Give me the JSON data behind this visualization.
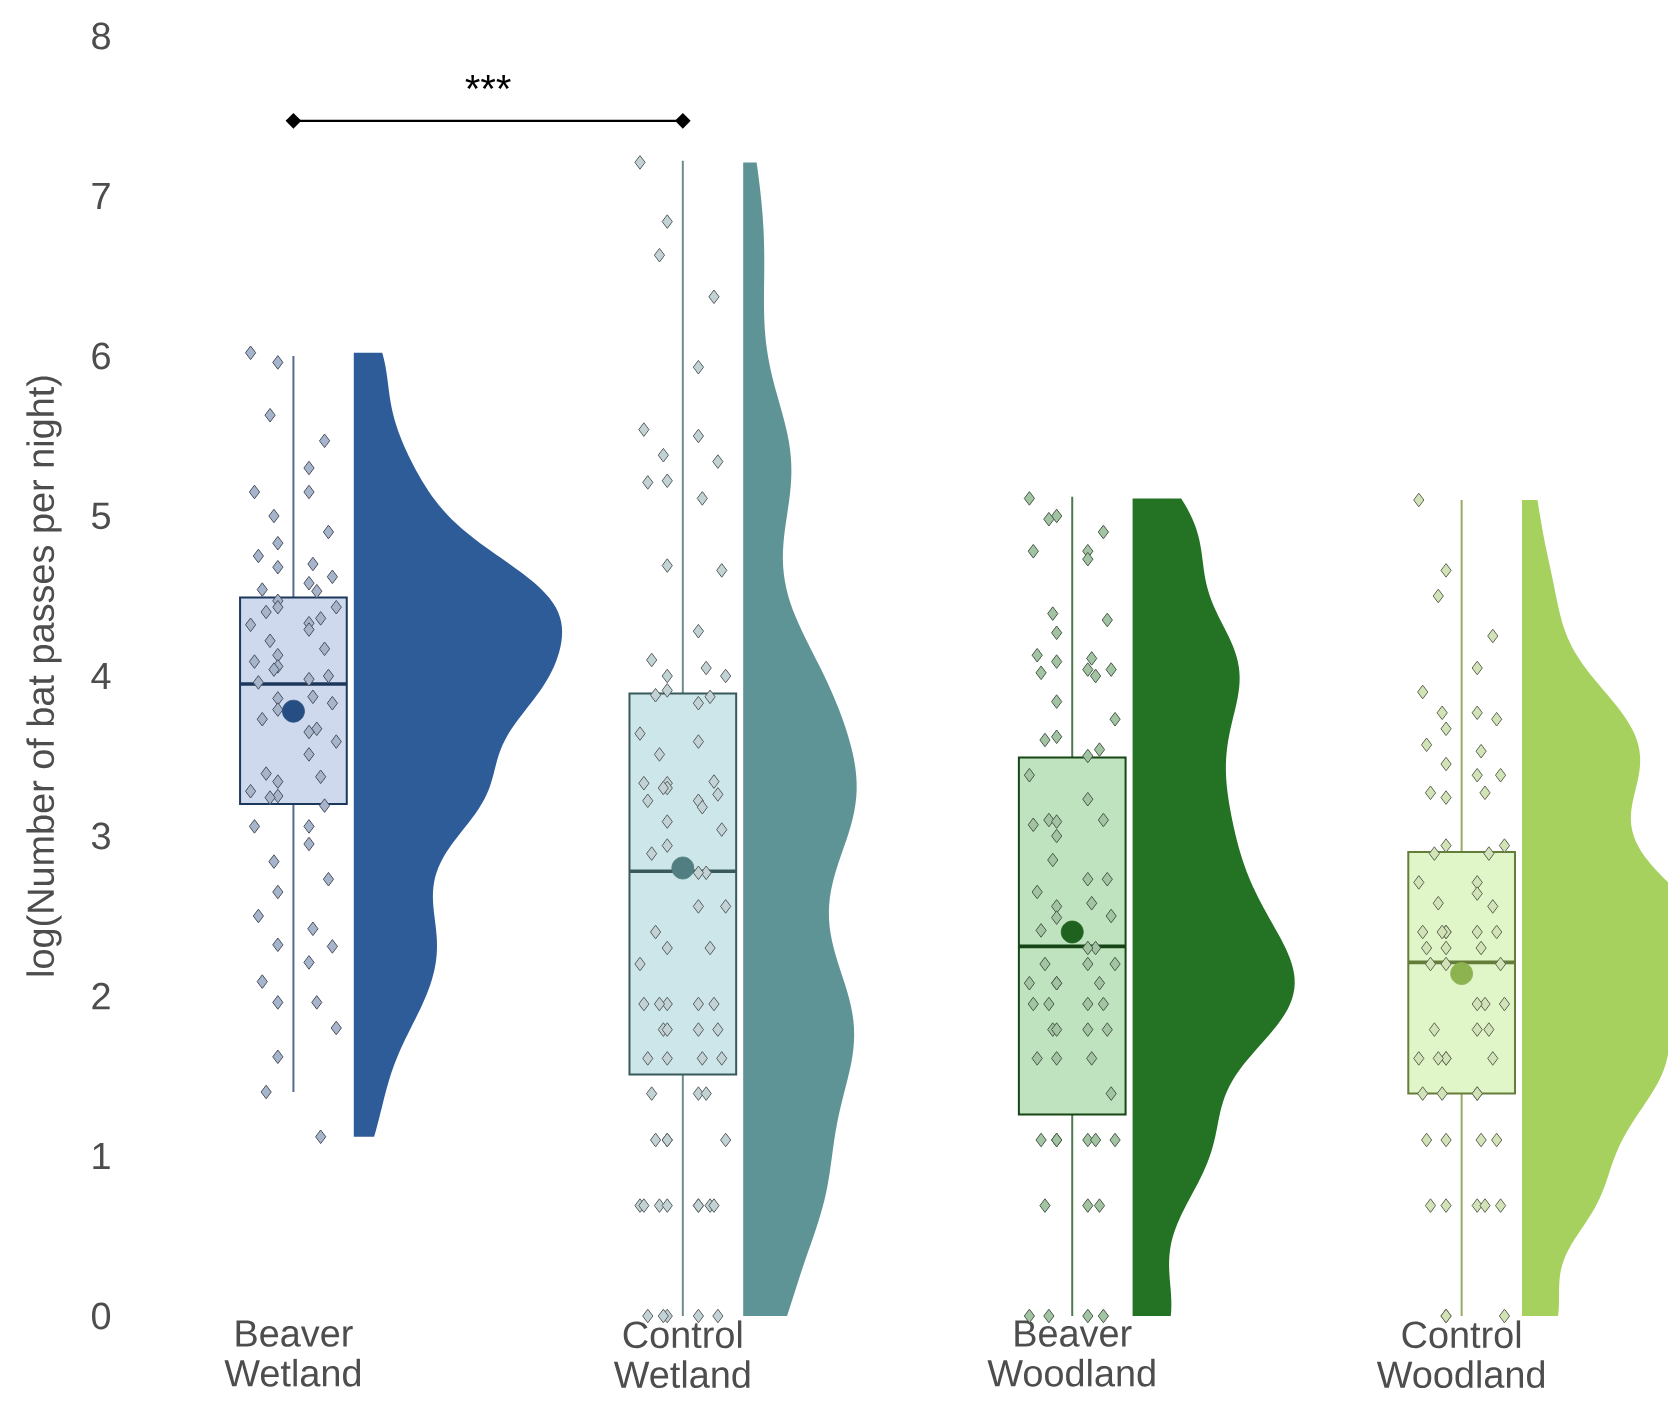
{
  "chart_data": {
    "type": "box",
    "ylabel": "log(Number of bat passes per night)",
    "categories": [
      "Beaver Wetland",
      "Control Wetland",
      "Beaver Woodland",
      "Control Woodland"
    ],
    "ylim": [
      0,
      8
    ],
    "yticks": [
      0,
      1,
      2,
      3,
      4,
      5,
      6,
      7,
      8
    ],
    "colors": [
      "#cfd9ee",
      "#cde6ea",
      "#bfe3bf",
      "#e0f5c8"
    ],
    "boxes": [
      {
        "low": 1.4,
        "q1": 3.2,
        "median": 3.95,
        "q3": 4.49,
        "high": 6.0,
        "mean": 3.78
      },
      {
        "low": 0,
        "q1": 1.51,
        "median": 2.78,
        "q3": 3.89,
        "high": 7.22,
        "mean": 2.8
      },
      {
        "low": 0,
        "q1": 1.26,
        "median": 2.31,
        "q3": 3.49,
        "high": 5.12,
        "mean": 2.4
      },
      {
        "low": 0,
        "q1": 1.39,
        "median": 2.21,
        "q3": 2.9,
        "high": 5.1,
        "mean": 2.14
      }
    ],
    "annotations": [
      "***"
    ],
    "series": [
      {
        "type": "scatter",
        "marker": "diamond",
        "color": "#a6b4cc",
        "x": [
          "Beaver Wetland",
          "Beaver Wetland",
          "Beaver Wetland",
          "Beaver Wetland",
          "Beaver Wetland",
          "Beaver Wetland",
          "Beaver Wetland",
          "Beaver Wetland",
          "Beaver Wetland",
          "Beaver Wetland",
          "Beaver Wetland",
          "Beaver Wetland",
          "Beaver Wetland",
          "Beaver Wetland",
          "Beaver Wetland",
          "Beaver Wetland",
          "Beaver Wetland",
          "Beaver Wetland",
          "Beaver Wetland",
          "Beaver Wetland",
          "Beaver Wetland",
          "Beaver Wetland",
          "Beaver Wetland",
          "Beaver Wetland",
          "Beaver Wetland",
          "Beaver Wetland",
          "Beaver Wetland",
          "Beaver Wetland",
          "Beaver Wetland",
          "Beaver Wetland",
          "Beaver Wetland",
          "Beaver Wetland",
          "Beaver Wetland",
          "Beaver Wetland",
          "Beaver Wetland",
          "Beaver Wetland",
          "Beaver Wetland",
          "Beaver Wetland",
          "Beaver Wetland",
          "Beaver Wetland",
          "Beaver Wetland",
          "Beaver Wetland",
          "Beaver Wetland",
          "Beaver Wetland",
          "Beaver Wetland",
          "Beaver Wetland",
          "Beaver Wetland",
          "Beaver Wetland",
          "Beaver Wetland",
          "Beaver Wetland",
          "Beaver Wetland",
          "Beaver Wetland",
          "Beaver Wetland",
          "Beaver Wetland",
          "Beaver Wetland",
          "Beaver Wetland",
          "Beaver Wetland",
          "Beaver Wetland",
          "Beaver Wetland",
          "Beaver Wetland",
          "Beaver Wetland",
          "Beaver Wetland",
          "Beaver Wetland",
          "Beaver Wetland",
          "Beaver Wetland",
          "Beaver Wetland",
          "Beaver Wetland",
          "Beaver Wetland"
        ],
        "values": [
          6.02,
          5.96,
          5.63,
          5.47,
          5.3,
          5.15,
          5.15,
          5.0,
          4.9,
          4.83,
          4.75,
          4.7,
          4.68,
          4.62,
          4.58,
          4.54,
          4.53,
          4.47,
          4.43,
          4.43,
          4.4,
          4.36,
          4.33,
          4.32,
          4.29,
          4.22,
          4.17,
          4.13,
          4.09,
          4.06,
          4.04,
          4.0,
          3.98,
          3.96,
          3.87,
          3.86,
          3.83,
          3.79,
          3.73,
          3.67,
          3.65,
          3.59,
          3.51,
          3.39,
          3.37,
          3.34,
          3.28,
          3.25,
          3.24,
          3.19,
          3.06,
          3.06,
          2.95,
          2.84,
          2.73,
          2.65,
          2.5,
          2.42,
          2.32,
          2.31,
          2.21,
          2.09,
          1.96,
          1.96,
          1.8,
          1.62,
          1.4,
          1.12
        ]
      },
      {
        "type": "scatter",
        "marker": "diamond",
        "color": "#c3d3d5",
        "x": [
          "Control Wetland",
          "Control Wetland",
          "Control Wetland",
          "Control Wetland",
          "Control Wetland",
          "Control Wetland",
          "Control Wetland",
          "Control Wetland",
          "Control Wetland",
          "Control Wetland",
          "Control Wetland",
          "Control Wetland",
          "Control Wetland",
          "Control Wetland",
          "Control Wetland",
          "Control Wetland",
          "Control Wetland",
          "Control Wetland",
          "Control Wetland",
          "Control Wetland",
          "Control Wetland",
          "Control Wetland",
          "Control Wetland",
          "Control Wetland",
          "Control Wetland",
          "Control Wetland",
          "Control Wetland",
          "Control Wetland",
          "Control Wetland",
          "Control Wetland",
          "Control Wetland",
          "Control Wetland",
          "Control Wetland",
          "Control Wetland",
          "Control Wetland",
          "Control Wetland",
          "Control Wetland",
          "Control Wetland",
          "Control Wetland",
          "Control Wetland",
          "Control Wetland",
          "Control Wetland",
          "Control Wetland",
          "Control Wetland",
          "Control Wetland",
          "Control Wetland",
          "Control Wetland",
          "Control Wetland",
          "Control Wetland",
          "Control Wetland",
          "Control Wetland",
          "Control Wetland",
          "Control Wetland",
          "Control Wetland",
          "Control Wetland",
          "Control Wetland",
          "Control Wetland",
          "Control Wetland",
          "Control Wetland",
          "Control Wetland",
          "Control Wetland",
          "Control Wetland",
          "Control Wetland",
          "Control Wetland",
          "Control Wetland",
          "Control Wetland",
          "Control Wetland",
          "Control Wetland",
          "Control Wetland",
          "Control Wetland",
          "Control Wetland",
          "Control Wetland",
          "Control Wetland",
          "Control Wetland",
          "Control Wetland",
          "Control Wetland",
          "Control Wetland",
          "Control Wetland",
          "Control Wetland",
          "Control Wetland"
        ],
        "values": [
          7.21,
          6.84,
          6.63,
          6.37,
          5.93,
          5.54,
          5.5,
          5.38,
          5.34,
          5.22,
          5.21,
          5.11,
          4.69,
          4.66,
          4.28,
          4.1,
          4.05,
          4.0,
          4.0,
          3.91,
          3.88,
          3.87,
          3.83,
          3.64,
          3.59,
          3.51,
          3.34,
          3.33,
          3.33,
          3.3,
          3.3,
          3.26,
          3.22,
          3.22,
          3.18,
          3.09,
          3.04,
          2.94,
          2.89,
          2.77,
          2.77,
          2.56,
          2.56,
          2.4,
          2.3,
          2.3,
          2.2,
          1.95,
          1.95,
          1.95,
          1.95,
          1.95,
          1.79,
          1.79,
          1.79,
          1.79,
          1.61,
          1.61,
          1.61,
          1.61,
          1.39,
          1.39,
          1.39,
          1.1,
          1.1,
          1.1,
          1.1,
          0.69,
          0.69,
          0.69,
          0.69,
          0.69,
          0.69,
          0.69,
          0.69,
          0,
          0,
          0,
          0,
          0
        ]
      },
      {
        "type": "scatter",
        "marker": "diamond",
        "color": "#a3c4a3",
        "x": [
          "Beaver Woodland",
          "Beaver Woodland",
          "Beaver Woodland",
          "Beaver Woodland",
          "Beaver Woodland",
          "Beaver Woodland",
          "Beaver Woodland",
          "Beaver Woodland",
          "Beaver Woodland",
          "Beaver Woodland",
          "Beaver Woodland",
          "Beaver Woodland",
          "Beaver Woodland",
          "Beaver Woodland",
          "Beaver Woodland",
          "Beaver Woodland",
          "Beaver Woodland",
          "Beaver Woodland",
          "Beaver Woodland",
          "Beaver Woodland",
          "Beaver Woodland",
          "Beaver Woodland",
          "Beaver Woodland",
          "Beaver Woodland",
          "Beaver Woodland",
          "Beaver Woodland",
          "Beaver Woodland",
          "Beaver Woodland",
          "Beaver Woodland",
          "Beaver Woodland",
          "Beaver Woodland",
          "Beaver Woodland",
          "Beaver Woodland",
          "Beaver Woodland",
          "Beaver Woodland",
          "Beaver Woodland",
          "Beaver Woodland",
          "Beaver Woodland",
          "Beaver Woodland",
          "Beaver Woodland",
          "Beaver Woodland",
          "Beaver Woodland",
          "Beaver Woodland",
          "Beaver Woodland",
          "Beaver Woodland",
          "Beaver Woodland",
          "Beaver Woodland",
          "Beaver Woodland",
          "Beaver Woodland",
          "Beaver Woodland",
          "Beaver Woodland",
          "Beaver Woodland",
          "Beaver Woodland",
          "Beaver Woodland",
          "Beaver Woodland",
          "Beaver Woodland",
          "Beaver Woodland",
          "Beaver Woodland",
          "Beaver Woodland",
          "Beaver Woodland",
          "Beaver Woodland",
          "Beaver Woodland",
          "Beaver Woodland",
          "Beaver Woodland",
          "Beaver Woodland",
          "Beaver Woodland",
          "Beaver Woodland",
          "Beaver Woodland",
          "Beaver Woodland",
          "Beaver Woodland",
          "Beaver Woodland",
          "Beaver Woodland",
          "Beaver Woodland"
        ],
        "values": [
          5.11,
          5.0,
          4.98,
          4.9,
          4.78,
          4.78,
          4.73,
          4.39,
          4.35,
          4.27,
          4.13,
          4.11,
          4.09,
          4.04,
          4.04,
          4.02,
          4.0,
          3.84,
          3.73,
          3.62,
          3.6,
          3.54,
          3.5,
          3.38,
          3.23,
          3.1,
          3.1,
          3.09,
          3.07,
          3.0,
          2.85,
          2.73,
          2.73,
          2.65,
          2.58,
          2.56,
          2.5,
          2.49,
          2.41,
          2.3,
          2.3,
          2.2,
          2.2,
          2.2,
          2.08,
          2.08,
          2.08,
          2.08,
          1.95,
          1.95,
          1.95,
          1.95,
          1.79,
          1.79,
          1.79,
          1.79,
          1.61,
          1.61,
          1.61,
          1.39,
          1.1,
          1.1,
          1.1,
          1.1,
          1.1,
          1.1,
          0.69,
          0.69,
          0.69,
          0,
          0,
          0,
          0
        ]
      },
      {
        "type": "scatter",
        "marker": "diamond",
        "color": "#d2e4b7",
        "x": [
          "Control Woodland",
          "Control Woodland",
          "Control Woodland",
          "Control Woodland",
          "Control Woodland",
          "Control Woodland",
          "Control Woodland",
          "Control Woodland",
          "Control Woodland",
          "Control Woodland",
          "Control Woodland",
          "Control Woodland",
          "Control Woodland",
          "Control Woodland",
          "Control Woodland",
          "Control Woodland",
          "Control Woodland",
          "Control Woodland",
          "Control Woodland",
          "Control Woodland",
          "Control Woodland",
          "Control Woodland",
          "Control Woodland",
          "Control Woodland",
          "Control Woodland",
          "Control Woodland",
          "Control Woodland",
          "Control Woodland",
          "Control Woodland",
          "Control Woodland",
          "Control Woodland",
          "Control Woodland",
          "Control Woodland",
          "Control Woodland",
          "Control Woodland",
          "Control Woodland",
          "Control Woodland",
          "Control Woodland",
          "Control Woodland",
          "Control Woodland",
          "Control Woodland",
          "Control Woodland",
          "Control Woodland",
          "Control Woodland",
          "Control Woodland",
          "Control Woodland",
          "Control Woodland",
          "Control Woodland",
          "Control Woodland",
          "Control Woodland",
          "Control Woodland",
          "Control Woodland",
          "Control Woodland",
          "Control Woodland",
          "Control Woodland",
          "Control Woodland",
          "Control Woodland",
          "Control Woodland",
          "Control Woodland",
          "Control Woodland",
          "Control Woodland",
          "Control Woodland",
          "Control Woodland",
          "Control Woodland",
          "Control Woodland",
          "Control Woodland"
        ],
        "values": [
          5.1,
          4.66,
          4.5,
          4.25,
          4.05,
          3.9,
          3.77,
          3.77,
          3.73,
          3.67,
          3.57,
          3.53,
          3.45,
          3.38,
          3.38,
          3.27,
          3.27,
          3.24,
          2.94,
          2.94,
          2.89,
          2.89,
          2.71,
          2.71,
          2.64,
          2.58,
          2.56,
          2.4,
          2.4,
          2.4,
          2.4,
          2.4,
          2.4,
          2.3,
          2.3,
          2.3,
          2.2,
          2.2,
          2.2,
          1.95,
          1.95,
          1.95,
          1.79,
          1.79,
          1.79,
          1.61,
          1.61,
          1.61,
          1.61,
          1.61,
          1.39,
          1.39,
          1.39,
          1.39,
          1.1,
          1.1,
          1.1,
          1.1,
          0.69,
          0.69,
          0.69,
          0.69,
          0.69,
          0,
          0,
          0
        ]
      }
    ]
  }
}
